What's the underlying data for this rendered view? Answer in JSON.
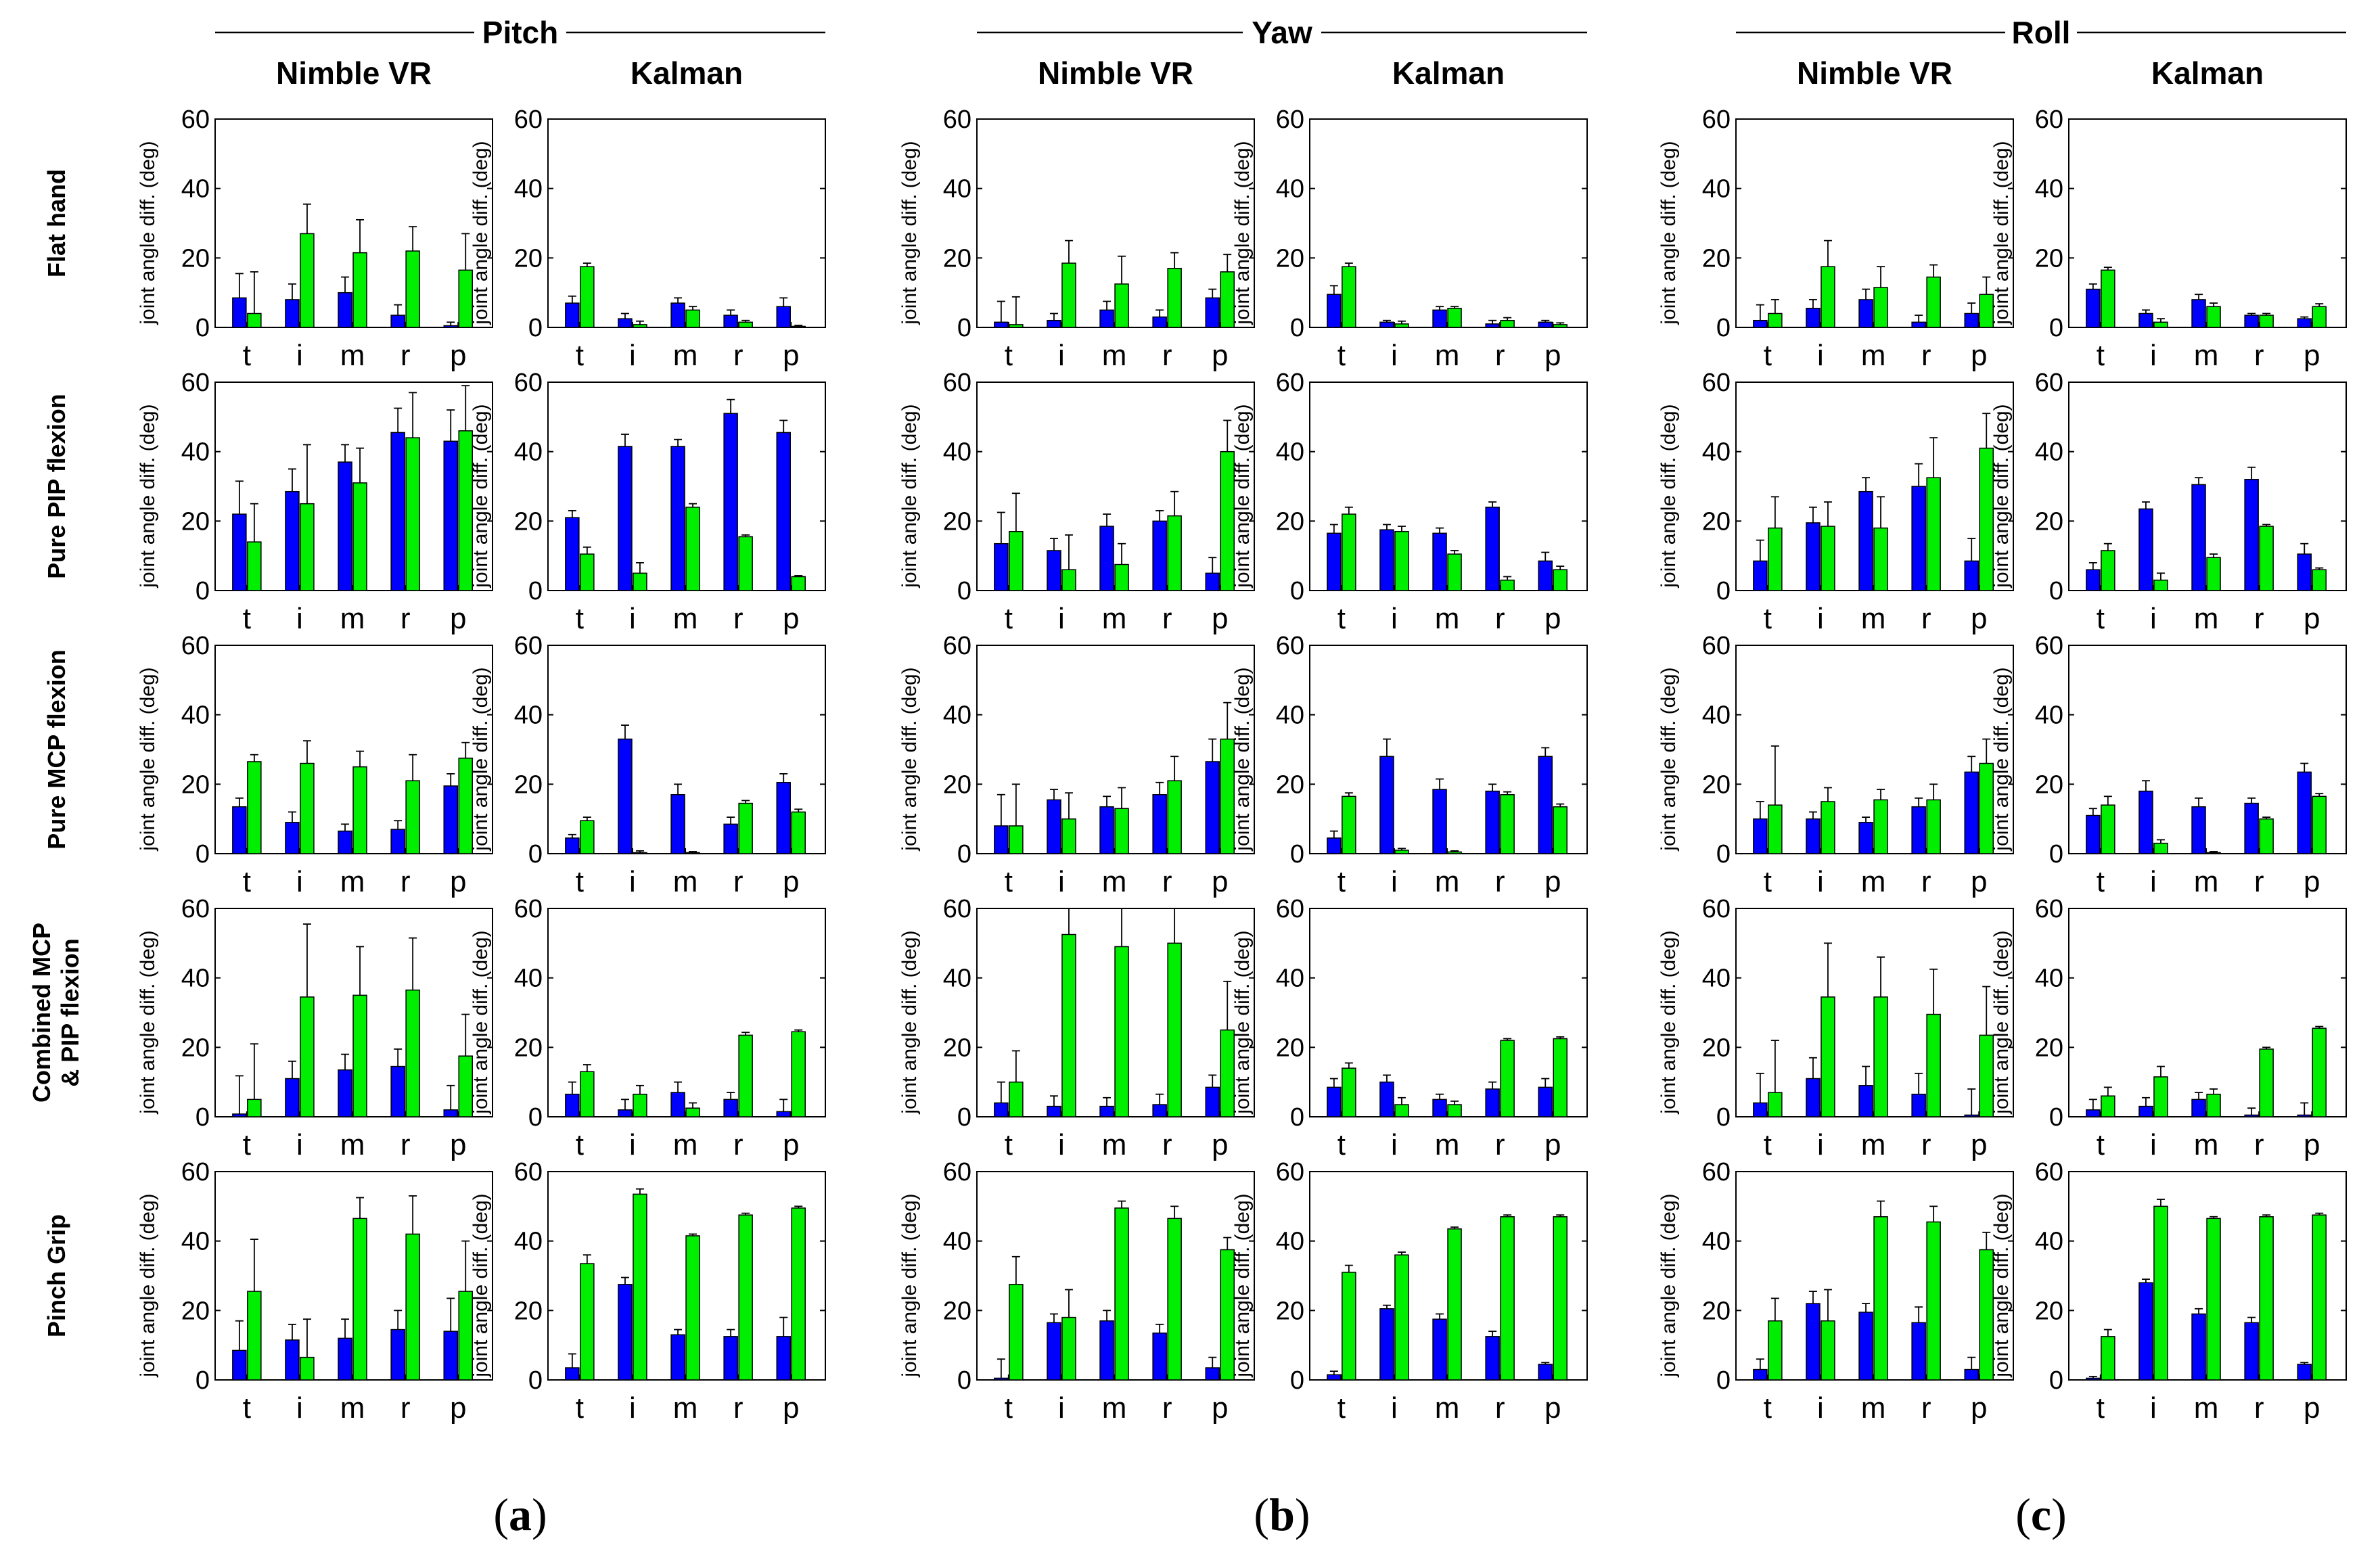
{
  "chart_data": {
    "type": "bar",
    "title": "",
    "ylabel": "joint angle diff. (deg)",
    "ylim": [
      0,
      60
    ],
    "yticks": [
      0,
      20,
      40,
      60
    ],
    "categories": [
      "t",
      "i",
      "m",
      "r",
      "p"
    ],
    "groups": [
      "Pitch",
      "Yaw",
      "Roll"
    ],
    "methods": [
      "Nimble VR",
      "Kalman"
    ],
    "rows": [
      "Flat hand",
      "Pure PIP flexion",
      "Pure MCP flexion",
      "Combined MCP\n& PIP flexion",
      "Pinch Grip"
    ],
    "series_colors": {
      "blue": "#0000ff",
      "green": "#00ee00"
    },
    "sublabels": [
      {
        "open": "(",
        "letter": "a",
        "close": ")"
      },
      {
        "open": "(",
        "letter": "b",
        "close": ")"
      },
      {
        "open": "(",
        "letter": "c",
        "close": ")"
      }
    ],
    "panels": [
      [
        [
          {
            "blue": [
              8.5,
              8,
              10,
              3.5,
              0.5
            ],
            "blue_err": [
              7,
              4.5,
              4.5,
              3,
              1
            ],
            "green": [
              4,
              27,
              21.5,
              22,
              16.5
            ],
            "green_err": [
              12,
              8.5,
              9.5,
              7,
              10.5
            ]
          },
          {
            "blue": [
              7,
              2.5,
              7,
              3.5,
              6
            ],
            "blue_err": [
              2,
              1.5,
              1.5,
              1.5,
              2.5
            ],
            "green": [
              17.5,
              0.8,
              5,
              1.5,
              0.3
            ],
            "green_err": [
              1,
              1,
              1,
              0.5,
              0.3
            ]
          }
        ],
        [
          {
            "blue": [
              22,
              28.5,
              37,
              45.5,
              43
            ],
            "blue_err": [
              9.5,
              6.5,
              5,
              7,
              9
            ],
            "green": [
              14,
              25,
              31,
              44,
              46
            ],
            "green_err": [
              11,
              17,
              10,
              13,
              13
            ]
          },
          {
            "blue": [
              21,
              41.5,
              41.5,
              51,
              45.5
            ],
            "blue_err": [
              2,
              3.5,
              2,
              4,
              3.5
            ],
            "green": [
              10.5,
              5,
              24,
              15.5,
              4
            ],
            "green_err": [
              2,
              3,
              1,
              0.5,
              0.3
            ]
          }
        ],
        [
          {
            "blue": [
              13.5,
              9,
              6.5,
              7,
              19.5
            ],
            "blue_err": [
              2.5,
              3,
              2,
              2.5,
              3.5
            ],
            "green": [
              26.5,
              26,
              25,
              21,
              27.5
            ],
            "green_err": [
              2,
              6.5,
              4.5,
              7.5,
              4.5
            ]
          },
          {
            "blue": [
              4.5,
              33,
              17,
              8.5,
              20.5
            ],
            "blue_err": [
              1,
              4,
              3,
              2,
              2.5
            ],
            "green": [
              9.5,
              0.3,
              0.3,
              14.5,
              12
            ],
            "green_err": [
              1,
              0.5,
              0.3,
              0.8,
              0.8
            ]
          }
        ],
        [
          {
            "blue": [
              0.8,
              11,
              13.5,
              14.5,
              2
            ],
            "blue_err": [
              11,
              5,
              4.5,
              5,
              7
            ],
            "green": [
              5,
              34.5,
              35,
              36.5,
              17.5
            ],
            "green_err": [
              16,
              21,
              14,
              15,
              12
            ]
          },
          {
            "blue": [
              6.5,
              2,
              7,
              5,
              1.5
            ],
            "blue_err": [
              3.5,
              3,
              3,
              2,
              3.5
            ],
            "green": [
              13,
              6.5,
              2.5,
              23.5,
              24.5
            ],
            "green_err": [
              2,
              2.5,
              1.5,
              0.8,
              0.5
            ]
          }
        ],
        [
          {
            "blue": [
              8.5,
              11.5,
              12,
              14.5,
              14
            ],
            "blue_err": [
              8.5,
              4.5,
              5.5,
              5.5,
              9.5
            ],
            "green": [
              25.5,
              6.5,
              46.5,
              42,
              25.5
            ],
            "green_err": [
              15,
              11,
              6,
              11,
              14.5
            ]
          },
          {
            "blue": [
              3.5,
              27.5,
              13,
              12.5,
              12.5
            ],
            "blue_err": [
              4,
              2,
              1.5,
              2,
              5.5
            ],
            "green": [
              33.5,
              53.5,
              41.5,
              47.5,
              49.5
            ],
            "green_err": [
              2.5,
              1.5,
              0.5,
              0.5,
              0.5
            ]
          }
        ]
      ],
      [
        [
          {
            "blue": [
              1.5,
              2,
              5,
              3,
              8.5
            ],
            "blue_err": [
              6,
              2,
              2.5,
              2,
              2.5
            ],
            "green": [
              0.8,
              18.5,
              12.5,
              17,
              16
            ],
            "green_err": [
              8,
              6.5,
              8,
              4.5,
              5
            ]
          },
          {
            "blue": [
              9.5,
              1.5,
              5,
              1,
              1.5
            ],
            "blue_err": [
              2.5,
              0.5,
              1,
              1,
              0.5
            ],
            "green": [
              17.5,
              1,
              5.5,
              2,
              0.8
            ],
            "green_err": [
              1,
              0.8,
              0.5,
              0.8,
              0.5
            ]
          }
        ],
        [
          {
            "blue": [
              13.5,
              11.5,
              18.5,
              20,
              5
            ],
            "blue_err": [
              9,
              3.5,
              3.5,
              3,
              4.5
            ],
            "green": [
              17,
              6,
              7.5,
              21.5,
              40
            ],
            "green_err": [
              11,
              10,
              6,
              7,
              9
            ]
          },
          {
            "blue": [
              16.5,
              17.5,
              16.5,
              24,
              8.5
            ],
            "blue_err": [
              2.5,
              1.5,
              1.5,
              1.5,
              2.5
            ],
            "green": [
              22,
              17,
              10.5,
              3,
              6
            ],
            "green_err": [
              2,
              1.5,
              1,
              1,
              1
            ]
          }
        ],
        [
          {
            "blue": [
              8,
              15.5,
              13.5,
              17,
              26.5
            ],
            "blue_err": [
              9,
              3,
              3,
              3.5,
              6.5
            ],
            "green": [
              8,
              10,
              13,
              21,
              33
            ],
            "green_err": [
              12,
              7.5,
              6,
              7,
              10.5
            ]
          },
          {
            "blue": [
              4.5,
              28,
              18.5,
              18,
              28
            ],
            "blue_err": [
              2,
              5,
              3,
              2,
              2.5
            ],
            "green": [
              16.5,
              1,
              0.5,
              17,
              13.5
            ],
            "green_err": [
              1,
              0.5,
              0.3,
              0.8,
              0.8
            ]
          }
        ],
        [
          {
            "blue": [
              4,
              3,
              3,
              3.5,
              8.5
            ],
            "blue_err": [
              6,
              3,
              2.5,
              3,
              3.5
            ],
            "green": [
              10,
              52.5,
              49,
              50,
              25
            ],
            "green_err": [
              9,
              7.5,
              11,
              10,
              14
            ]
          },
          {
            "blue": [
              8.5,
              10,
              5,
              8,
              8.5
            ],
            "blue_err": [
              2.5,
              2,
              1.5,
              2,
              2.5
            ],
            "green": [
              14,
              3.5,
              3.5,
              22,
              22.5
            ],
            "green_err": [
              1.5,
              2,
              1,
              0.5,
              0.5
            ]
          }
        ],
        [
          {
            "blue": [
              0.5,
              16.5,
              17,
              13.5,
              3.5
            ],
            "blue_err": [
              5.5,
              2.5,
              3,
              2.5,
              3
            ],
            "green": [
              27.5,
              18,
              49.5,
              46.5,
              37.5
            ],
            "green_err": [
              8,
              8,
              2,
              3.5,
              3.5
            ]
          },
          {
            "blue": [
              1.5,
              20.5,
              17.5,
              12.5,
              4.5
            ],
            "blue_err": [
              1,
              1,
              1.5,
              1.5,
              0.5
            ],
            "green": [
              31,
              36,
              43.5,
              47,
              47
            ],
            "green_err": [
              2,
              0.8,
              0.5,
              0.5,
              0.5
            ]
          }
        ]
      ],
      [
        [
          {
            "blue": [
              2,
              5.5,
              8,
              1.5,
              4
            ],
            "blue_err": [
              4.5,
              2.5,
              3,
              2,
              3
            ],
            "green": [
              4,
              17.5,
              11.5,
              14.5,
              9.5
            ],
            "green_err": [
              4,
              7.5,
              6,
              3.5,
              5
            ]
          },
          {
            "blue": [
              11,
              4,
              8,
              3.5,
              2.5
            ],
            "blue_err": [
              1.5,
              1,
              1.5,
              0.5,
              0.5
            ],
            "green": [
              16.5,
              1.5,
              6,
              3.5,
              6
            ],
            "green_err": [
              0.8,
              1,
              1,
              0.5,
              0.8
            ]
          }
        ],
        [
          {
            "blue": [
              8.5,
              19.5,
              28.5,
              30,
              8.5
            ],
            "blue_err": [
              6,
              4.5,
              4,
              6.5,
              6.5
            ],
            "green": [
              18,
              18.5,
              18,
              32.5,
              41
            ],
            "green_err": [
              9,
              7,
              9,
              11.5,
              10
            ]
          },
          {
            "blue": [
              6,
              23.5,
              30.5,
              32,
              10.5
            ],
            "blue_err": [
              2,
              2,
              2,
              3.5,
              3
            ],
            "green": [
              11.5,
              3,
              9.5,
              18.5,
              6
            ],
            "green_err": [
              2,
              2,
              1,
              0.5,
              0.5
            ]
          }
        ],
        [
          {
            "blue": [
              10,
              10,
              9,
              13.5,
              23.5
            ],
            "blue_err": [
              5,
              2,
              1.5,
              2.5,
              4.5
            ],
            "green": [
              14,
              15,
              15.5,
              15.5,
              26
            ],
            "green_err": [
              17,
              4,
              3,
              4.5,
              7
            ]
          },
          {
            "blue": [
              11,
              18,
              13.5,
              14.5,
              23.5
            ],
            "blue_err": [
              2,
              3,
              2.5,
              1.5,
              2.5
            ],
            "green": [
              14,
              3,
              0.3,
              10,
              16.5
            ],
            "green_err": [
              2.5,
              1,
              0.3,
              0.5,
              0.8
            ]
          }
        ],
        [
          {
            "blue": [
              4,
              11,
              9,
              6.5,
              0.5
            ],
            "blue_err": [
              8.5,
              6,
              5.5,
              6,
              7.5
            ],
            "green": [
              7,
              34.5,
              34.5,
              29.5,
              23.5
            ],
            "green_err": [
              15,
              15.5,
              11.5,
              13,
              14
            ]
          },
          {
            "blue": [
              2,
              3,
              5,
              0.5,
              0.5
            ],
            "blue_err": [
              3,
              2.5,
              2,
              2,
              3.5
            ],
            "green": [
              6,
              11.5,
              6.5,
              19.5,
              25.5
            ],
            "green_err": [
              2.5,
              3,
              1.5,
              0.5,
              0.5
            ]
          }
        ],
        [
          {
            "blue": [
              3,
              22,
              19.5,
              16.5,
              3
            ],
            "blue_err": [
              3,
              3.5,
              2.5,
              4.5,
              3.5
            ],
            "green": [
              17,
              17,
              47,
              45.5,
              37.5
            ],
            "green_err": [
              6.5,
              9,
              4.5,
              4.5,
              5
            ]
          },
          {
            "blue": [
              0.5,
              28,
              19,
              16.5,
              4.5
            ],
            "blue_err": [
              0.5,
              1,
              1.5,
              1.5,
              0.5
            ],
            "green": [
              12.5,
              50,
              46.5,
              47,
              47.5
            ],
            "green_err": [
              2,
              2,
              0.5,
              0.5,
              0.5
            ]
          }
        ]
      ]
    ]
  }
}
